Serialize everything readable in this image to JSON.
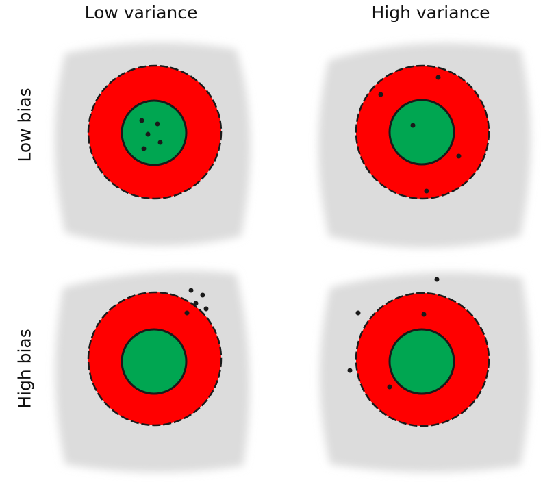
{
  "columns": [
    {
      "label": "Low variance"
    },
    {
      "label": "High variance"
    }
  ],
  "rows": [
    {
      "label": "Low bias"
    },
    {
      "label": "High bias"
    }
  ],
  "colors": {
    "background_blob": "#dcdcdc",
    "outer_ring": "#ff0000",
    "bullseye": "#00a651",
    "ring_edge": "#1a1a1a",
    "shot": "#1a1a1a"
  },
  "targets": [
    {
      "id": "low-bias-low-variance",
      "row": 0,
      "col": 0
    },
    {
      "id": "low-bias-high-variance",
      "row": 0,
      "col": 1
    },
    {
      "id": "high-bias-low-variance",
      "row": 1,
      "col": 0
    },
    {
      "id": "high-bias-high-variance",
      "row": 1,
      "col": 1
    }
  ]
}
